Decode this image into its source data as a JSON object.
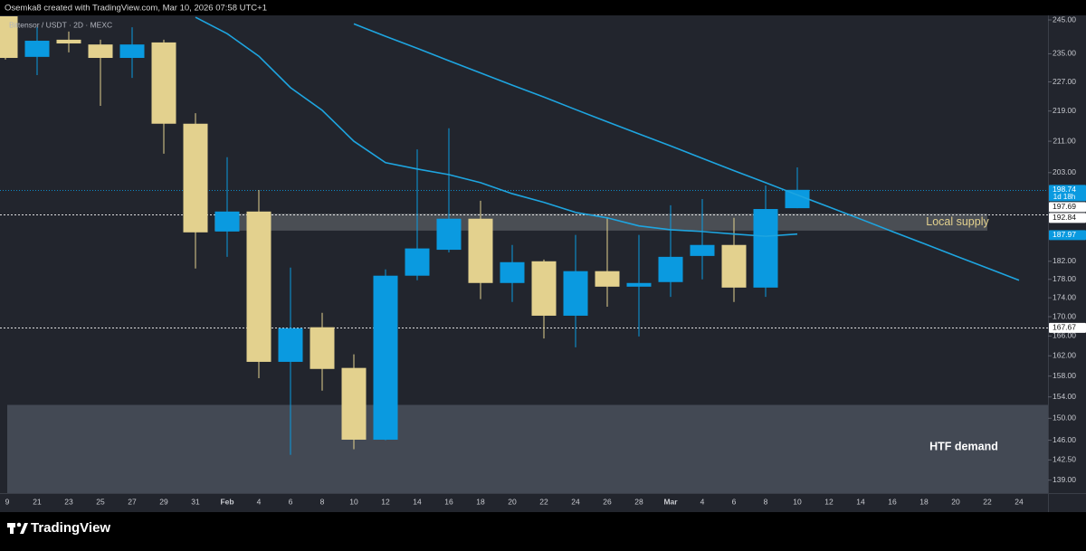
{
  "header": "Osemka8 created with TradingView.com, Mar 10, 2026 07:58 UTC+1",
  "footer": "TradingView",
  "chart_data": {
    "type": "candlestick",
    "symbol": "Bittensor / USDT · 2D · MEXC",
    "log_scale": true,
    "grid": false,
    "up_color": "#0a9ae0",
    "down_color": "#e3d18e",
    "categories": [
      "9",
      "21",
      "23",
      "25",
      "27",
      "29",
      "31",
      "Feb",
      "4",
      "6",
      "8",
      "10",
      "12",
      "14",
      "16",
      "18",
      "20",
      "22",
      "24",
      "26",
      "28",
      "Mar",
      "4",
      "6",
      "8",
      "10",
      "12",
      "14",
      "16",
      "18",
      "20",
      "22",
      "24"
    ],
    "open": [
      246.1,
      234.1,
      239.1,
      237.7,
      233.8,
      238.3,
      215.6,
      188.8,
      193.5,
      160.8,
      167.8,
      159.6,
      146.1,
      178.8,
      184.6,
      191.8,
      177.2,
      182.0,
      170.2,
      179.8,
      176.4,
      177.4,
      183.2,
      185.7,
      176.2,
      194.3,
      null,
      null,
      null,
      null,
      null,
      null,
      null
    ],
    "high": [
      246.1,
      242.8,
      241.5,
      239.1,
      242.8,
      239.1,
      218.4,
      206.9,
      198.7,
      180.6,
      170.8,
      162.3,
      180.2,
      208.9,
      214.4,
      196.1,
      185.7,
      182.4,
      188.0,
      192.0,
      188.0,
      195.0,
      196.5,
      192.0,
      199.8,
      204.3,
      null,
      null,
      null,
      null,
      null,
      null,
      null
    ],
    "low": [
      233.3,
      228.9,
      235.4,
      220.4,
      228.1,
      207.8,
      180.4,
      183.0,
      157.6,
      143.4,
      155.2,
      144.4,
      146.0,
      177.8,
      184.0,
      173.7,
      173.1,
      165.5,
      163.7,
      172.1,
      165.9,
      174.2,
      178.0,
      173.1,
      174.2,
      194.3,
      null,
      null,
      null,
      null,
      null,
      null,
      null
    ],
    "close": [
      233.8,
      238.8,
      238.0,
      233.8,
      237.7,
      215.6,
      188.6,
      193.5,
      160.8,
      167.6,
      159.4,
      146.1,
      178.8,
      184.9,
      191.8,
      177.2,
      181.8,
      170.2,
      179.8,
      176.4,
      177.2,
      183.0,
      185.7,
      176.2,
      194.1,
      198.74,
      null,
      null,
      null,
      null,
      null,
      null,
      null
    ],
    "lines": [
      {
        "color": "#1ea5e0",
        "values": [
          null,
          null,
          null,
          null,
          null,
          null,
          245.8,
          240.9,
          234.3,
          225.4,
          219.2,
          211.0,
          205.5,
          203.9,
          202.5,
          200.5,
          197.8,
          195.7,
          193.3,
          192.0,
          190.1,
          189.2,
          188.8,
          188.2,
          187.7,
          188.2,
          null,
          null,
          null,
          null,
          null,
          null,
          null
        ]
      },
      {
        "color": "#1ea5e0",
        "values": [
          null,
          null,
          null,
          null,
          null,
          null,
          null,
          null,
          null,
          null,
          null,
          243.8,
          240.1,
          236.6,
          233.0,
          229.5,
          226.1,
          222.8,
          219.4,
          216.1,
          212.9,
          209.8,
          206.6,
          203.5,
          200.5,
          197.5,
          194.6,
          191.7,
          188.8,
          186.0,
          183.2,
          180.5,
          177.8
        ]
      }
    ],
    "zones": [
      {
        "label": "Local supply",
        "range": [
          189.0,
          193.0
        ]
      },
      {
        "label": "HTF demand",
        "range": [
          136.8,
          152.5
        ]
      }
    ],
    "price_labels": [
      {
        "value": 198.74,
        "sublabel": "1d 18h",
        "color": "#0a9ae0",
        "dotted": true
      },
      {
        "value": 197.69,
        "color": "#ffffff",
        "dotted": false
      },
      {
        "value": 192.84,
        "color": "#ffffff",
        "dotted": true
      },
      {
        "value": 187.97,
        "color": "#0a9ae0",
        "dotted": false
      },
      {
        "value": 167.67,
        "color": "#ffffff",
        "dotted": true
      }
    ],
    "ylim": [
      136.8,
      246.1
    ],
    "yticks": [
      {
        "value": 245,
        "label": "245.00"
      },
      {
        "value": 235,
        "label": "235.00"
      },
      {
        "value": 227,
        "label": "227.00"
      },
      {
        "value": 219,
        "label": "219.00"
      },
      {
        "value": 211,
        "label": "211.00"
      },
      {
        "value": 203,
        "label": "203.00"
      },
      {
        "value": 182,
        "label": "182.00"
      },
      {
        "value": 178,
        "label": "178.00"
      },
      {
        "value": 174,
        "label": "174.00"
      },
      {
        "value": 170,
        "label": "170.00"
      },
      {
        "value": 166,
        "label": "166.00"
      },
      {
        "value": 162,
        "label": "162.00"
      },
      {
        "value": 158,
        "label": "158.00"
      },
      {
        "value": 154,
        "label": "154.00"
      },
      {
        "value": 150,
        "label": "150.00"
      },
      {
        "value": 146,
        "label": "146.00"
      },
      {
        "value": 142.5,
        "label": "142.50"
      },
      {
        "value": 139,
        "label": "139.00"
      }
    ]
  }
}
